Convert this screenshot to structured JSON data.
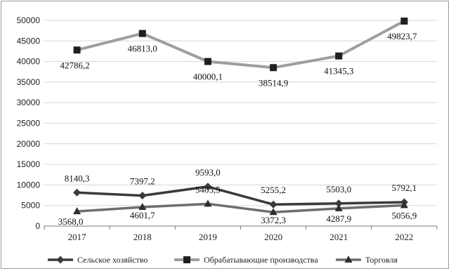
{
  "chart_data": {
    "type": "line",
    "title": "",
    "xlabel": "",
    "ylabel": "",
    "x": [
      "2017",
      "2018",
      "2019",
      "2020",
      "2021",
      "2022"
    ],
    "ylim": [
      0,
      50000
    ],
    "yticks": [
      "0",
      "5000",
      "10000",
      "15000",
      "20000",
      "25000",
      "30000",
      "35000",
      "40000",
      "45000",
      "50000"
    ],
    "grid": "horizontal",
    "legend_position": "bottom",
    "series": [
      {
        "name": "Сельское хозяйство",
        "values": [
          8140.3,
          7397.2,
          9593.0,
          5255.2,
          5503.0,
          5792.1
        ],
        "labels": [
          "8140,3",
          "7397,2",
          "9593,0",
          "5255,2",
          "5503,0",
          "5792,1"
        ],
        "color": "#3a3a3a",
        "marker": "diamond"
      },
      {
        "name": "Обрабатывающие производства",
        "values": [
          42786.2,
          46813.0,
          40000.1,
          38514.9,
          41345.3,
          49823.7
        ],
        "labels": [
          "42786,2",
          "46813,0",
          "40000,1",
          "38514,9",
          "41345,3",
          "49823,7"
        ],
        "color": "#9e9e9e",
        "marker": "square"
      },
      {
        "name": "Торговля",
        "values": [
          3568.0,
          4601.7,
          5405.5,
          3372.3,
          4287.9,
          5056.9
        ],
        "labels": [
          "3568,0",
          "4601,7",
          "5405,5",
          "3372,3",
          "4287,9",
          "5056,9"
        ],
        "color": "#6e6e6e",
        "marker": "triangle"
      }
    ]
  }
}
